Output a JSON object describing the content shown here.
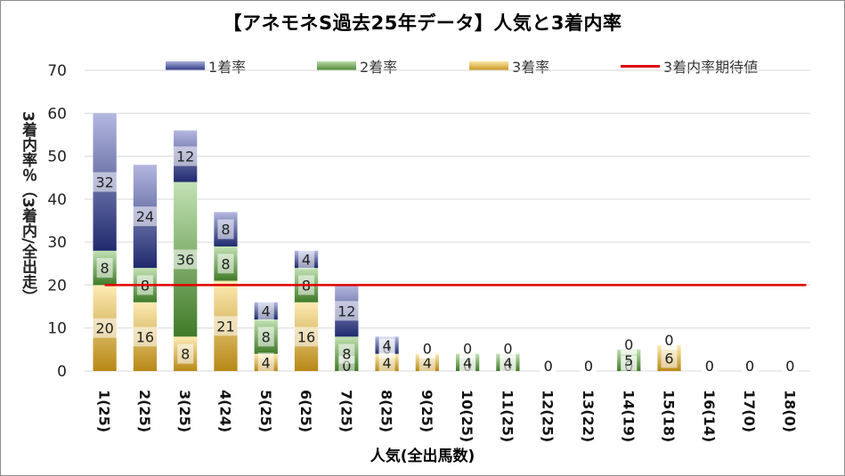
{
  "title": "【アネモネS過去25年データ】人気と3着内率",
  "legend": {
    "s1": "1着率",
    "s2": "2着率",
    "s3": "3着率",
    "line": "3着内率期待値"
  },
  "colors": {
    "s1": "#2e3a87",
    "s2": "#4d8a32",
    "s3": "#c9951d",
    "line": "#e00000"
  },
  "chart_data": {
    "type": "bar",
    "stacked": true,
    "title": "【アネモネS過去25年データ】人気と3着内率",
    "xlabel": "人気(全出馬数)",
    "ylabel": "3着内率％（3着内/全出走）",
    "ylim": [
      0,
      70
    ],
    "yticks": [
      0,
      10,
      20,
      30,
      40,
      50,
      60,
      70
    ],
    "grid": true,
    "legend_position": "top",
    "categories": [
      "1(25)",
      "2(25)",
      "3(25)",
      "4(24)",
      "5(25)",
      "6(25)",
      "7(25)",
      "8(25)",
      "9(25)",
      "10(25)",
      "11(25)",
      "12(25)",
      "13(22)",
      "14(19)",
      "15(18)",
      "16(14)",
      "17(0)",
      "18(0)"
    ],
    "series": [
      {
        "name": "3着率",
        "values": [
          20,
          16,
          8,
          21,
          4,
          16,
          0,
          4,
          4,
          0,
          0,
          0,
          0,
          0,
          6,
          0,
          0,
          0
        ]
      },
      {
        "name": "2着率",
        "values": [
          8,
          8,
          36,
          8,
          8,
          8,
          8,
          0,
          0,
          4,
          4,
          0,
          0,
          5,
          0,
          0,
          0,
          0
        ]
      },
      {
        "name": "1着率",
        "values": [
          32,
          24,
          12,
          8,
          4,
          4,
          12,
          4,
          0,
          0,
          0,
          0,
          0,
          0,
          0,
          0,
          0,
          0
        ]
      }
    ],
    "reference_line": {
      "name": "3着内率期待値",
      "value": 20
    }
  }
}
